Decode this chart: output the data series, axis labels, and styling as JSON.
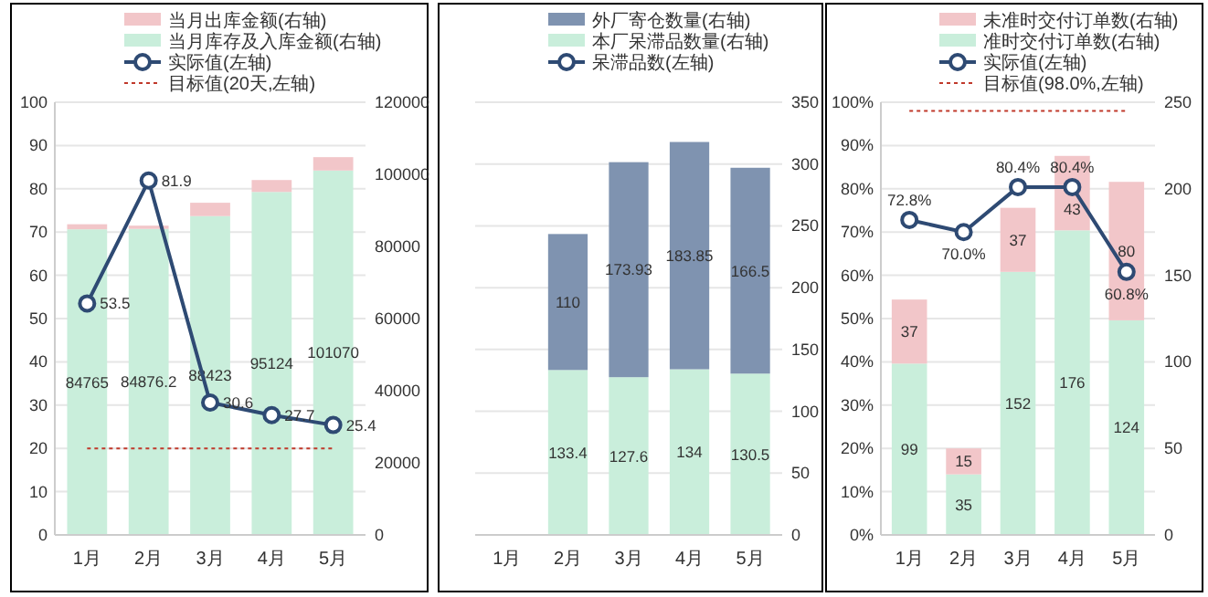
{
  "chart_data": [
    {
      "type": "bar",
      "stacked": true,
      "categories": [
        "1月",
        "2月",
        "3月",
        "4月",
        "5月"
      ],
      "legend": "top",
      "grid": "y",
      "series": [
        {
          "name": "当月库存及入库金额(右轴)",
          "color": "#c9eedb",
          "axis": "y2",
          "values": [
            84765,
            84876.2,
            88423,
            95124,
            101070
          ],
          "value_labels": [
            "84765",
            "84876.2",
            "88423",
            "95124",
            "101070"
          ]
        },
        {
          "name": "当月出库金额(右轴)",
          "color": "#f2c6c9",
          "axis": "y2",
          "values": [
            1400,
            900,
            3700,
            3300,
            3700
          ]
        },
        {
          "name": "实际值(左轴)",
          "type": "line",
          "color": "#2e4a73",
          "marker": "circle",
          "values": [
            53.5,
            81.9,
            30.6,
            27.7,
            25.4
          ],
          "value_labels": [
            "53.5",
            "81.9",
            "30.6",
            "27.7",
            "25.4"
          ]
        }
      ],
      "ylim": [
        0,
        100
      ],
      "yticks": [
        0,
        10,
        20,
        30,
        40,
        50,
        60,
        70,
        80,
        90,
        100
      ],
      "y2lim": [
        0,
        120000
      ],
      "y2ticks": [
        0,
        20000,
        40000,
        60000,
        80000,
        100000,
        120000
      ],
      "ref_lines": [
        {
          "axis": "y",
          "value": 20,
          "label": "目标值(20天,左轴)",
          "color": "#c0392b",
          "line_style": "dotted"
        }
      ]
    },
    {
      "type": "bar",
      "stacked": true,
      "categories": [
        "1月",
        "2月",
        "3月",
        "4月",
        "5月"
      ],
      "legend": "top",
      "grid": "y2",
      "series": [
        {
          "name": "本厂呆滞品数量(右轴)",
          "color": "#c9eedb",
          "axis": "y2",
          "values": [
            null,
            133.4,
            127.6,
            134,
            130.5
          ],
          "value_labels": [
            null,
            "133.4",
            "127.6",
            "134",
            "130.5"
          ]
        },
        {
          "name": "外厂寄仓数量(右轴)",
          "color": "#7f93b0",
          "axis": "y2",
          "values": [
            null,
            110,
            173.93,
            183.85,
            166.5
          ],
          "value_labels": [
            null,
            "110",
            "173.93",
            "183.85",
            "166.5"
          ]
        },
        {
          "name": "呆滞品数(左轴)",
          "type": "line",
          "color": "#2e4a73",
          "marker": "circle",
          "values": [
            null,
            null,
            null,
            null,
            null
          ]
        }
      ],
      "y2lim": [
        0,
        350
      ],
      "y2ticks": [
        0,
        50,
        100,
        150,
        200,
        250,
        300,
        350
      ]
    },
    {
      "type": "bar",
      "stacked": true,
      "categories": [
        "1月",
        "2月",
        "3月",
        "4月",
        "5月"
      ],
      "legend": "top",
      "grid": "y",
      "series": [
        {
          "name": "准时交付订单数(右轴)",
          "color": "#c9eedb",
          "axis": "y2",
          "values": [
            99,
            35,
            152,
            176,
            124
          ],
          "value_labels": [
            "99",
            "35",
            "152",
            "176",
            "124"
          ]
        },
        {
          "name": "未准时交付订单数(右轴)",
          "color": "#f2c6c9",
          "axis": "y2",
          "values": [
            37,
            15,
            37,
            43,
            80
          ],
          "value_labels": [
            "37",
            "15",
            "37",
            "43",
            "80"
          ]
        },
        {
          "name": "实际值(左轴)",
          "type": "line",
          "color": "#2e4a73",
          "marker": "circle",
          "values": [
            72.8,
            70.0,
            80.4,
            80.4,
            60.8
          ],
          "value_labels": [
            "72.8%",
            "70.0%",
            "80.4%",
            "80.4%",
            "60.8%"
          ]
        }
      ],
      "ylim": [
        0,
        100
      ],
      "yticks": [
        {
          "value": 0,
          "label": "0%"
        },
        {
          "value": 10,
          "label": "10%"
        },
        {
          "value": 20,
          "label": "20%"
        },
        {
          "value": 30,
          "label": "30%"
        },
        {
          "value": 40,
          "label": "40%"
        },
        {
          "value": 50,
          "label": "50%"
        },
        {
          "value": 60,
          "label": "60%"
        },
        {
          "value": 70,
          "label": "70%"
        },
        {
          "value": 80,
          "label": "80%"
        },
        {
          "value": 90,
          "label": "90%"
        },
        {
          "value": 100,
          "label": "100%"
        }
      ],
      "y2lim": [
        0,
        250
      ],
      "y2ticks": [
        0,
        50,
        100,
        150,
        200,
        250
      ],
      "ref_lines": [
        {
          "axis": "y",
          "value": 98.0,
          "label": "目标值(98.0%,左轴)",
          "color": "#c0392b",
          "line_style": "dotted"
        }
      ]
    }
  ]
}
